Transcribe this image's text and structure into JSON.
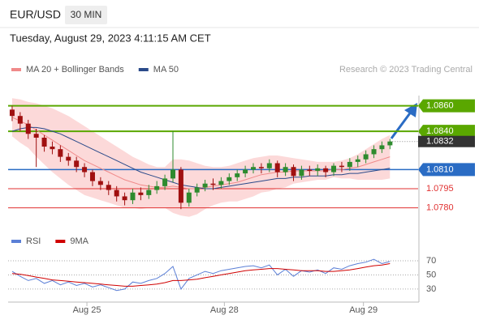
{
  "header": {
    "symbol": "EUR/USD",
    "interval": "30 MIN",
    "timestamp": "Tuesday, August 29, 2023 4:11:15 AM CET"
  },
  "chart_data": [
    {
      "type": "candlestick",
      "source": "Research © 2023 Trading Central",
      "xlim": [
        -0.5,
        50.5
      ],
      "ylim": [
        1.0762,
        1.0868
      ],
      "up_color": "#2e8b2e",
      "down_color": "#a01010",
      "open": [
        1.0857,
        1.0852,
        1.0846,
        1.0838,
        1.0835,
        1.0828,
        1.0826,
        1.082,
        1.0817,
        1.0812,
        1.0808,
        1.0801,
        1.0798,
        1.0794,
        1.0789,
        1.0786,
        1.0792,
        1.079,
        1.0794,
        1.0797,
        1.0803,
        1.081,
        1.0784,
        1.0792,
        1.0796,
        1.0799,
        1.0798,
        1.0801,
        1.0804,
        1.0807,
        1.081,
        1.0812,
        1.0811,
        1.0815,
        1.0808,
        1.0812,
        1.0805,
        1.081,
        1.0809,
        1.0811,
        1.0808,
        1.0813,
        1.0812,
        1.0816,
        1.0818,
        1.0822,
        1.0826,
        1.0829
      ],
      "high": [
        1.086,
        1.0855,
        1.0849,
        1.0842,
        1.0837,
        1.0832,
        1.0829,
        1.0823,
        1.082,
        1.0815,
        1.081,
        1.0804,
        1.0801,
        1.0797,
        1.0792,
        1.0795,
        1.0796,
        1.0798,
        1.0801,
        1.0806,
        1.084,
        1.0812,
        1.0795,
        1.0799,
        1.0802,
        1.0803,
        1.0804,
        1.0807,
        1.081,
        1.0813,
        1.0815,
        1.0815,
        1.0818,
        1.0817,
        1.0815,
        1.0814,
        1.0813,
        1.0813,
        1.0814,
        1.0813,
        1.0815,
        1.0816,
        1.0819,
        1.0821,
        1.0825,
        1.0829,
        1.0832,
        1.0834
      ],
      "low": [
        1.0848,
        1.084,
        1.0834,
        1.0812,
        1.0824,
        1.0822,
        1.0816,
        1.0813,
        1.0808,
        1.0804,
        1.0797,
        1.0794,
        1.079,
        1.0785,
        1.0782,
        1.0783,
        1.0786,
        1.0787,
        1.0791,
        1.0794,
        1.08,
        1.0779,
        1.0781,
        1.0789,
        1.0793,
        1.0794,
        1.0795,
        1.0798,
        1.0801,
        1.0804,
        1.0807,
        1.0807,
        1.0808,
        1.0804,
        1.0805,
        1.0801,
        1.0802,
        1.0805,
        1.0805,
        1.0804,
        1.0805,
        1.0808,
        1.0809,
        1.0812,
        1.0815,
        1.0819,
        1.0823,
        1.0826
      ],
      "close": [
        1.0852,
        1.0846,
        1.0838,
        1.0835,
        1.0828,
        1.0826,
        1.082,
        1.0817,
        1.0812,
        1.0808,
        1.0801,
        1.0798,
        1.0794,
        1.0789,
        1.0786,
        1.0792,
        1.079,
        1.0794,
        1.0797,
        1.0803,
        1.081,
        1.0784,
        1.0792,
        1.0796,
        1.0799,
        1.0798,
        1.0801,
        1.0804,
        1.0807,
        1.081,
        1.0812,
        1.0811,
        1.0815,
        1.0808,
        1.0812,
        1.0805,
        1.081,
        1.0809,
        1.0811,
        1.0808,
        1.0813,
        1.0812,
        1.0816,
        1.0818,
        1.0822,
        1.0826,
        1.0829,
        1.0832
      ],
      "series": [
        {
          "name": "MA 20 + Bollinger Bands",
          "color": "#f08a8a",
          "band_color": "#fbd0d0",
          "values": [
            1.0851,
            1.0848,
            1.0845,
            1.0841,
            1.0837,
            1.0833,
            1.0829,
            1.0825,
            1.0821,
            1.0817,
            1.0814,
            1.0811,
            1.0808,
            1.0805,
            1.0802,
            1.08,
            1.0798,
            1.0797,
            1.0796,
            1.0796,
            1.0797,
            1.0796,
            1.0795,
            1.0795,
            1.0796,
            1.0797,
            1.0798,
            1.0799,
            1.08,
            1.0802,
            1.0804,
            1.0806,
            1.0807,
            1.0808,
            1.0808,
            1.0809,
            1.0809,
            1.0809,
            1.0809,
            1.0809,
            1.081,
            1.081,
            1.0811,
            1.0812,
            1.0814,
            1.0816,
            1.0818,
            1.082
          ],
          "upper": [
            1.0866,
            1.0865,
            1.0863,
            1.0862,
            1.086,
            1.0858,
            1.0855,
            1.0852,
            1.0848,
            1.0844,
            1.084,
            1.0836,
            1.0832,
            1.0828,
            1.0824,
            1.082,
            1.0817,
            1.0814,
            1.0812,
            1.0812,
            1.0818,
            1.0818,
            1.0817,
            1.0815,
            1.0813,
            1.0812,
            1.0812,
            1.0813,
            1.0815,
            1.0817,
            1.0819,
            1.082,
            1.0821,
            1.0821,
            1.082,
            1.0819,
            1.0818,
            1.0817,
            1.0816,
            1.0816,
            1.0816,
            1.0817,
            1.0819,
            1.0822,
            1.0826,
            1.083,
            1.0834,
            1.0837
          ],
          "lower": [
            1.0836,
            1.0831,
            1.0827,
            1.082,
            1.0814,
            1.0808,
            1.0803,
            1.0798,
            1.0794,
            1.079,
            1.0788,
            1.0786,
            1.0784,
            1.0782,
            1.078,
            1.078,
            1.0779,
            1.078,
            1.078,
            1.078,
            1.0776,
            1.0774,
            1.0773,
            1.0775,
            1.0779,
            1.0782,
            1.0784,
            1.0785,
            1.0785,
            1.0787,
            1.0789,
            1.0792,
            1.0793,
            1.0795,
            1.0796,
            1.0799,
            1.08,
            1.0801,
            1.0802,
            1.0802,
            1.0804,
            1.0803,
            1.0803,
            1.0802,
            1.0802,
            1.0802,
            1.0802,
            1.0803
          ]
        },
        {
          "name": "MA 50",
          "color": "#2a4a8a",
          "values": [
            1.084,
            1.0842,
            1.0843,
            1.0843,
            1.0842,
            1.084,
            1.0838,
            1.0835,
            1.0832,
            1.0829,
            1.0826,
            1.0823,
            1.082,
            1.0817,
            1.0814,
            1.0811,
            1.0808,
            1.0806,
            1.0804,
            1.0802,
            1.08,
            1.0798,
            1.0797,
            1.0796,
            1.0795,
            1.0795,
            1.0796,
            1.0797,
            1.0798,
            1.0799,
            1.08,
            1.0801,
            1.0802,
            1.0803,
            1.0803,
            1.0804,
            1.0804,
            1.0805,
            1.0805,
            1.0805,
            1.0806,
            1.0806,
            1.0807,
            1.0807,
            1.0808,
            1.0809,
            1.081,
            1.0811
          ]
        }
      ],
      "levels": [
        {
          "value": 1.086,
          "label": "1.0860",
          "color": "#5aa700",
          "boxed": true
        },
        {
          "value": 1.084,
          "label": "1.0840",
          "color": "#5aa700",
          "boxed": true
        },
        {
          "value": 1.081,
          "label": "1.0810",
          "color": "#2a6cc4",
          "boxed": true
        },
        {
          "value": 1.0795,
          "label": "1.0795",
          "color": "#e03030",
          "boxed": false
        },
        {
          "value": 1.078,
          "label": "1.0780",
          "color": "#e03030",
          "boxed": false
        }
      ],
      "current": {
        "value": 1.0832,
        "label": "1.0832",
        "color": "#333333"
      }
    },
    {
      "type": "line",
      "xlim": [
        -0.5,
        50.5
      ],
      "ylim": [
        15,
        78
      ],
      "yticks": [
        70,
        50,
        30
      ],
      "grid": true,
      "xticks": [
        {
          "value": 9.3,
          "label": "Aug 25"
        },
        {
          "value": 26.4,
          "label": "Aug 28"
        },
        {
          "value": 43.7,
          "label": "Aug 29"
        }
      ],
      "series": [
        {
          "name": "RSI",
          "color": "#5b7fd6",
          "values": [
            55,
            48,
            42,
            45,
            38,
            42,
            36,
            40,
            35,
            38,
            33,
            36,
            32,
            28,
            30,
            40,
            38,
            42,
            45,
            52,
            62,
            30,
            45,
            50,
            55,
            52,
            56,
            58,
            60,
            62,
            63,
            60,
            64,
            50,
            58,
            48,
            56,
            54,
            57,
            52,
            60,
            58,
            63,
            66,
            68,
            72,
            66,
            69
          ]
        },
        {
          "name": "9MA",
          "color": "#d00000",
          "values": [
            52,
            51,
            49,
            47,
            45,
            43,
            42,
            41,
            40,
            39,
            38,
            37,
            36,
            35,
            34,
            34,
            35,
            36,
            37,
            39,
            42,
            42,
            43,
            44,
            46,
            48,
            50,
            52,
            54,
            56,
            57,
            58,
            59,
            59,
            58,
            57,
            56,
            56,
            56,
            55,
            55,
            56,
            57,
            59,
            61,
            63,
            64,
            66
          ]
        }
      ]
    }
  ]
}
